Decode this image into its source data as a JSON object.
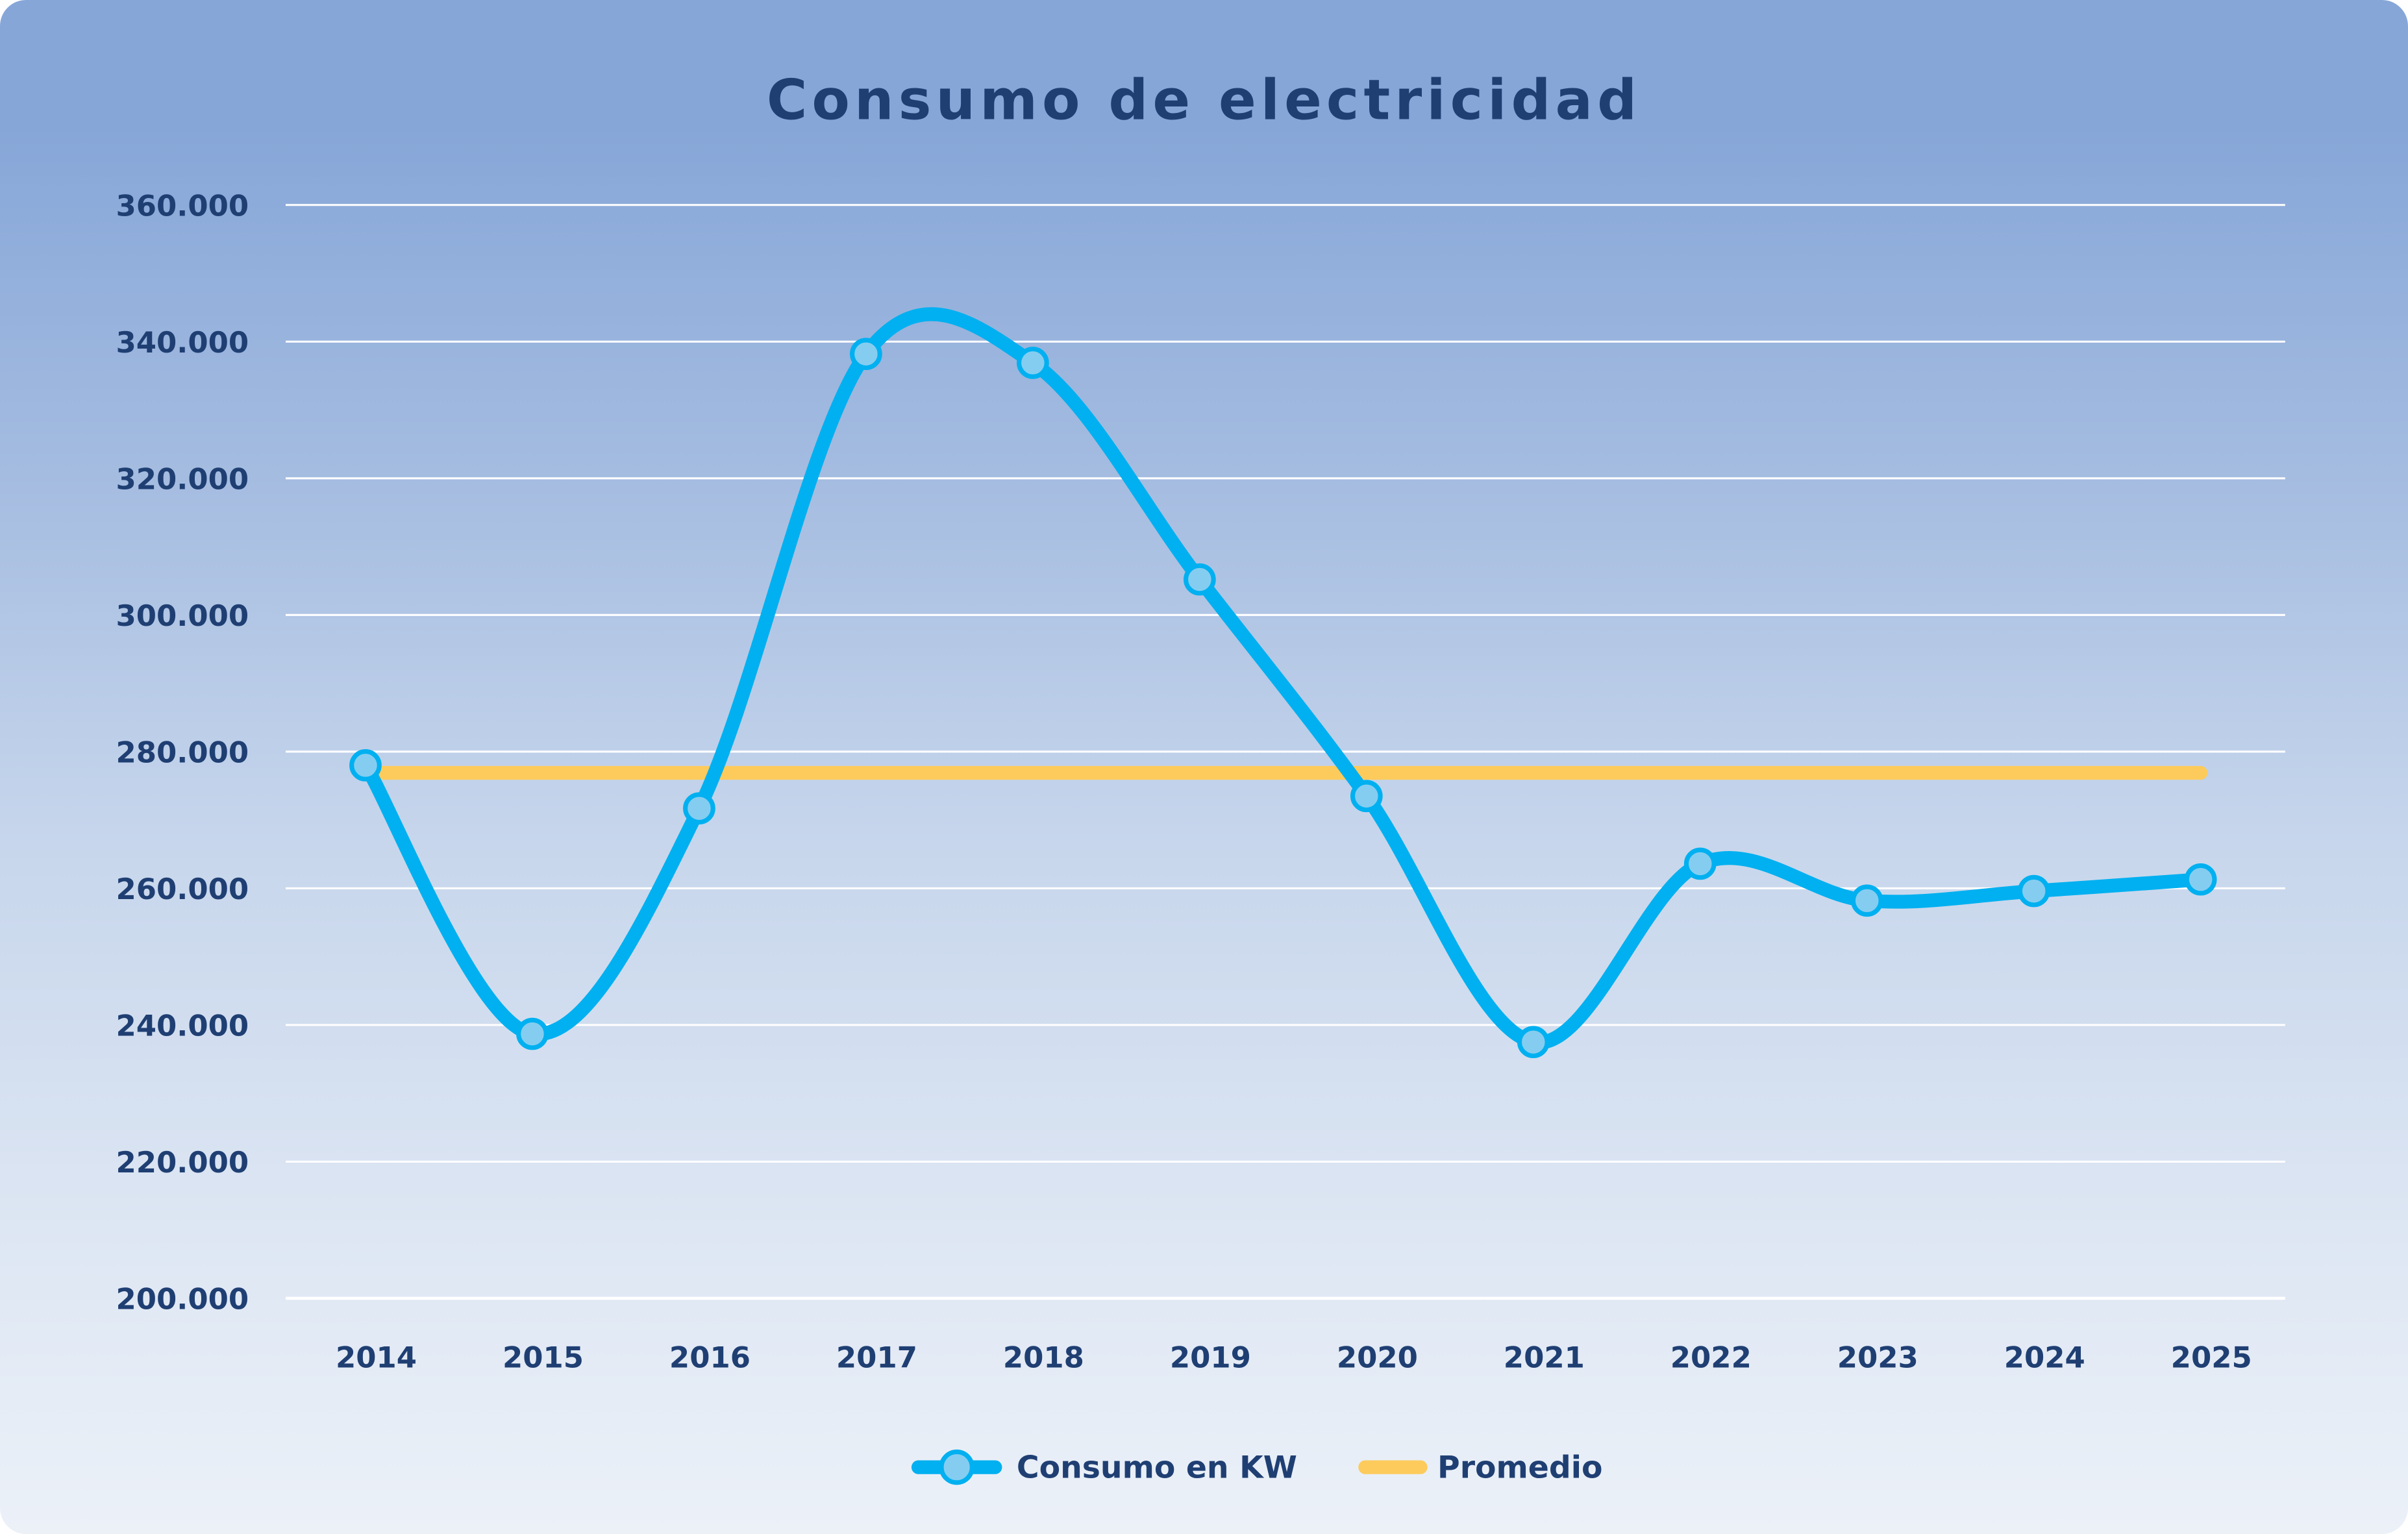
{
  "chart_data": {
    "type": "line",
    "title": "Consumo de electricidad",
    "xlabel": "",
    "ylabel": "",
    "categories": [
      "2014",
      "2015",
      "2016",
      "2017",
      "2018",
      "2019",
      "2020",
      "2021",
      "2022",
      "2023",
      "2024",
      "2025"
    ],
    "series": [
      {
        "name": "Consumo en KW",
        "color": "#00b0f0",
        "marker_color": "#85cdf0",
        "smooth": true,
        "values": [
          278000,
          238700,
          271700,
          338200,
          336900,
          305200,
          273500,
          237500,
          263600,
          258200,
          259600,
          261300
        ]
      },
      {
        "name": "Promedio",
        "color": "#fdcb5c",
        "smooth": false,
        "values": [
          276900,
          276900,
          276900,
          276900,
          276900,
          276900,
          276900,
          276900,
          276900,
          276900,
          276900,
          276900
        ]
      }
    ],
    "ylim": [
      200000,
      360000
    ],
    "yticks": [
      200000,
      220000,
      240000,
      260000,
      280000,
      300000,
      320000,
      340000,
      360000
    ],
    "ytick_labels": [
      "200.000",
      "220.000",
      "240.000",
      "260.000",
      "280.000",
      "300.000",
      "320.000",
      "340.000",
      "360.000"
    ],
    "grid": true,
    "legend_position": "bottom"
  }
}
